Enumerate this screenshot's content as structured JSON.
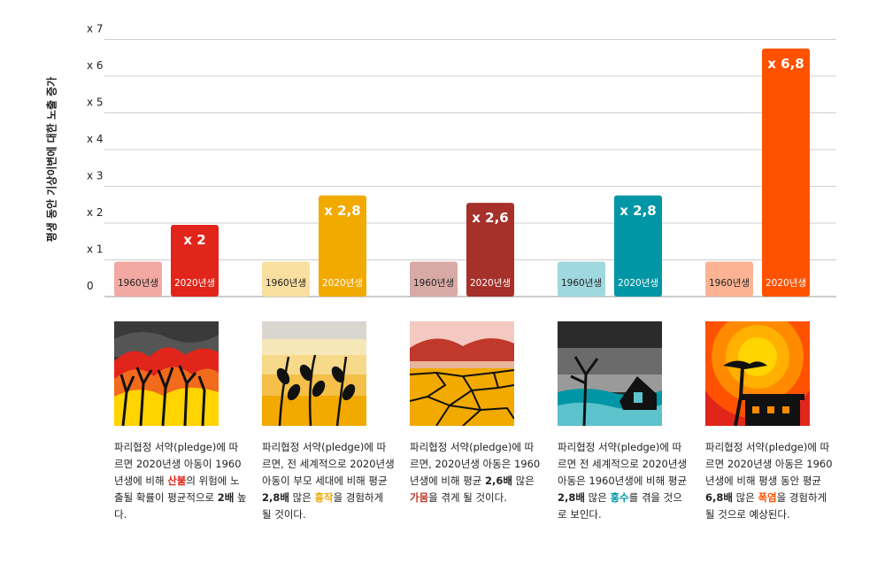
{
  "chart_data": {
    "type": "bar",
    "ylabel": "평생 동안 기상이변에 대한 노출 증가",
    "ylim": [
      0,
      7
    ],
    "y_ticks": [
      "0",
      "x 1",
      "x 2",
      "x 3",
      "x 4",
      "x 5",
      "x 6",
      "x 7"
    ],
    "grid": true,
    "groups": [
      {
        "event": "산불",
        "bars": [
          {
            "label": "1960년생",
            "value": 1,
            "color": "#f2a9a3"
          },
          {
            "label": "2020년생",
            "value": 2.0,
            "value_label": "x 2",
            "color": "#e1251b"
          }
        ]
      },
      {
        "event": "흉작",
        "bars": [
          {
            "label": "1960년생",
            "value": 1,
            "color": "#f9dfa0"
          },
          {
            "label": "2020년생",
            "value": 2.8,
            "value_label": "x 2,8",
            "color": "#f2a900"
          }
        ]
      },
      {
        "event": "가뭄",
        "bars": [
          {
            "label": "1960년생",
            "value": 1,
            "color": "#d8aaa6"
          },
          {
            "label": "2020년생",
            "value": 2.6,
            "value_label": "x 2,6",
            "color": "#a6302a"
          }
        ]
      },
      {
        "event": "홍수",
        "bars": [
          {
            "label": "1960년생",
            "value": 1,
            "color": "#9fd8de"
          },
          {
            "label": "2020년생",
            "value": 2.8,
            "value_label": "x 2,8",
            "color": "#0096a6"
          }
        ]
      },
      {
        "event": "폭염",
        "bars": [
          {
            "label": "1960년생",
            "value": 1,
            "color": "#fbb393"
          },
          {
            "label": "2020년생",
            "value": 6.8,
            "value_label": "x 6,8",
            "color": "#ff5200"
          }
        ]
      }
    ]
  },
  "captions": [
    {
      "before": "파리협정 서약(pledge)에 따르면 2020년생 아동이 1960년생에 비해 ",
      "hazard": "산불",
      "middle": "의 위험에 노출될 확률이 평균적으로 ",
      "number": "2배",
      "after": " 높다.",
      "color": "#e1251b"
    },
    {
      "before": "파리협정 서약(pledge)에 따르면, 전 세계적으로 2020년생 아동이 부모 세대에 비해 평균 ",
      "number": "2,8배",
      "middle": " 많은 ",
      "hazard": "흉작",
      "after": "을 경험하게 될 것이다.",
      "color": "#f2a900"
    },
    {
      "before": "파리협정 서약(pledge)에 따르면, 2020년생 아동은 1960년생에 비해 평균 ",
      "number": "2,6배",
      "middle": " 많은 ",
      "hazard": "가뭄",
      "after": "을 겪게 될 것이다.",
      "color": "#c0392b"
    },
    {
      "before": "파리협정 서약(pledge)에 따르면 전 세계적으로 2020년생 아동은 1960년생에 비해 평균 ",
      "number": "2,8배",
      "middle": " 많은 ",
      "hazard": "홍수",
      "after": "를 겪을 것으로 보인다.",
      "color": "#0096a6"
    },
    {
      "before": "파리협정 서약(pledge)에 따르면 2020년생 아동은 1960년생에 비해 평생 동안 평균 ",
      "number": "6,8배",
      "middle": " 많은 ",
      "hazard": "폭염",
      "after": "을 경험하게 될 것으로 예상된다.",
      "color": "#ff5200"
    }
  ],
  "icons": [
    "wildfire-icon",
    "crop-failure-icon",
    "drought-icon",
    "flood-icon",
    "heatwave-icon"
  ]
}
